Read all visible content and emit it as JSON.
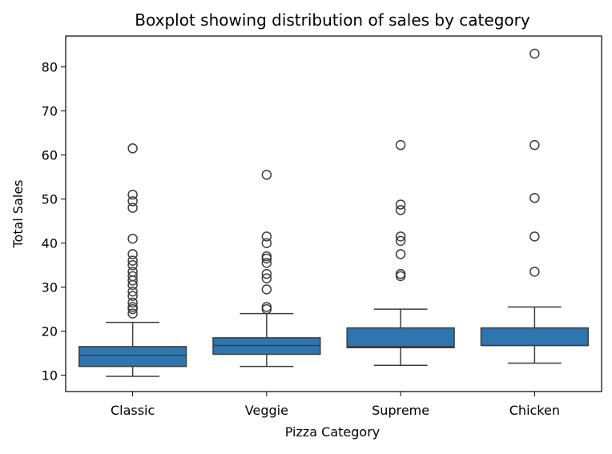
{
  "chart_data": {
    "type": "boxplot",
    "title": "Boxplot showing distribution of sales by category",
    "xlabel": "Pizza Category",
    "ylabel": "Total Sales",
    "ylim": [
      6.3,
      87
    ],
    "yticks": [
      10,
      20,
      30,
      40,
      50,
      60,
      70,
      80
    ],
    "grid": false,
    "box_color": "#2f75b0",
    "line_color": "#3d3d3d",
    "categories": [
      "Classic",
      "Veggie",
      "Supreme",
      "Chicken"
    ],
    "boxes": [
      {
        "category": "Classic",
        "whisker_low": 9.75,
        "q1": 12.0,
        "median": 14.5,
        "q3": 16.5,
        "whisker_high": 22.0,
        "outliers": [
          24.0,
          25.0,
          25.5,
          26.5,
          28.0,
          29.0,
          30.5,
          31.5,
          32.5,
          33.5,
          35.0,
          36.0,
          37.5,
          41.0,
          48.0,
          49.5,
          51.0,
          61.5
        ]
      },
      {
        "category": "Veggie",
        "whisker_low": 12.0,
        "q1": 14.75,
        "median": 16.75,
        "q3": 18.5,
        "whisker_high": 24.0,
        "outliers": [
          25.0,
          25.5,
          29.5,
          32.0,
          33.0,
          35.5,
          36.5,
          37.0,
          40.0,
          41.5,
          55.5
        ]
      },
      {
        "category": "Supreme",
        "whisker_low": 12.25,
        "q1": 16.25,
        "median": 16.5,
        "q3": 20.75,
        "whisker_high": 25.0,
        "outliers": [
          32.5,
          33.0,
          37.5,
          40.5,
          41.5,
          47.5,
          48.75,
          62.25
        ]
      },
      {
        "category": "Chicken",
        "whisker_low": 12.75,
        "q1": 16.75,
        "median": 16.75,
        "q3": 20.75,
        "whisker_high": 25.5,
        "outliers": [
          33.5,
          41.5,
          50.25,
          62.25,
          83.0
        ]
      }
    ]
  }
}
